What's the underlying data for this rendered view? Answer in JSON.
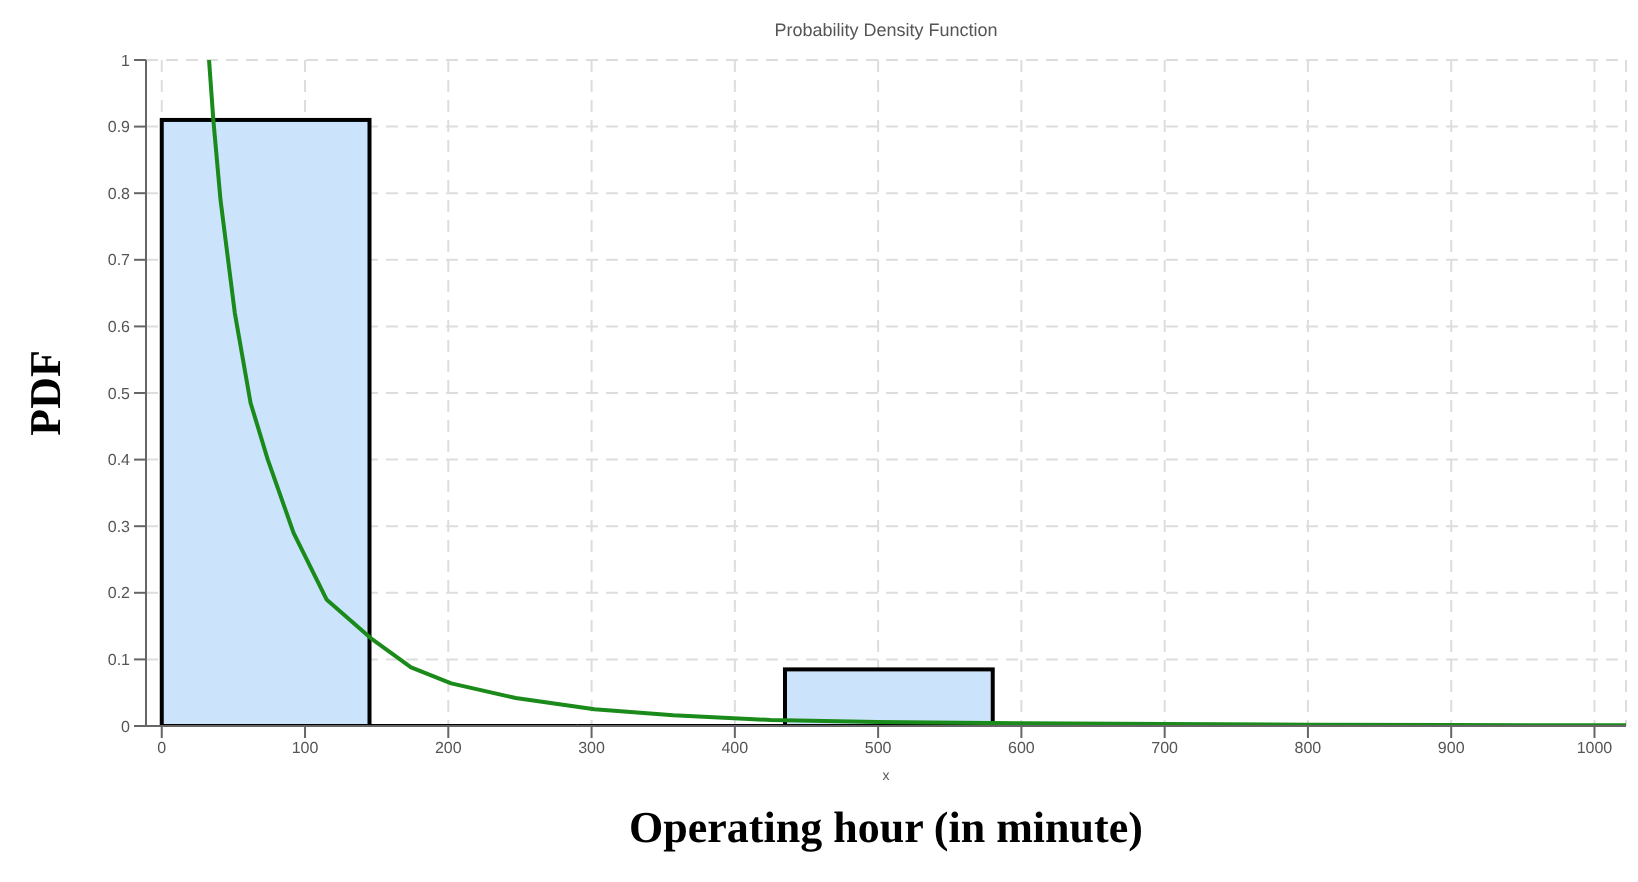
{
  "chart_data": {
    "type": "histogram",
    "title": "Probability Density Function",
    "xlabel": "Operating hour (in minute)",
    "ylabel": "PDF",
    "annotations": [
      "x"
    ],
    "bins": [
      0,
      145,
      290,
      435,
      580,
      725,
      870,
      1015
    ],
    "values": [
      0.91,
      0,
      0,
      0.085,
      0,
      0,
      0
    ],
    "color": "#cce4fb",
    "series": [
      {
        "type": "line",
        "color": "#1a8a1a",
        "x": [
          33,
          36,
          41,
          51,
          62,
          74,
          92,
          115,
          147,
          174,
          202,
          247,
          302,
          357,
          425,
          500,
          600,
          700,
          800,
          900,
          1000,
          1022
        ],
        "values": [
          1.0,
          0.91,
          0.79,
          0.62,
          0.485,
          0.4,
          0.29,
          0.19,
          0.13,
          0.088,
          0.064,
          0.042,
          0.025,
          0.016,
          0.009,
          0.006,
          0.004,
          0.003,
          0.002,
          0.0015,
          0.001,
          0.001
        ]
      }
    ],
    "xlim": [
      -11,
      1022
    ],
    "ylim": [
      0,
      1
    ],
    "xticks": [
      0,
      100,
      200,
      300,
      400,
      500,
      600,
      700,
      800,
      900,
      1000
    ],
    "yticks": [
      0,
      0.1,
      0.2,
      0.3,
      0.4,
      0.5,
      0.6,
      0.7,
      0.8,
      0.9,
      1
    ],
    "grid": true,
    "line_style": "solid",
    "marker": "none"
  }
}
